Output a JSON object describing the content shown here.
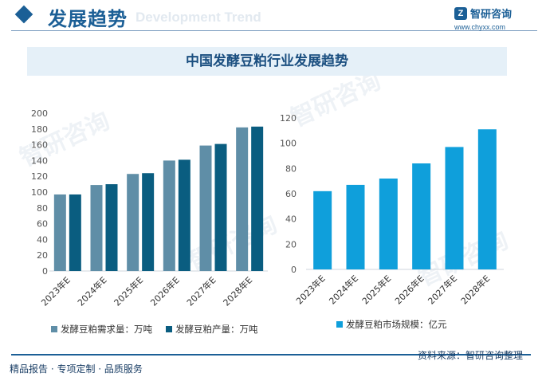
{
  "header": {
    "title": "发展趋势",
    "ghost_text": "Development Trend"
  },
  "logo": {
    "name": "智研咨询",
    "url": "www.chyxx.com"
  },
  "chart_title": "中国发酵豆粕行业发展趋势",
  "watermark": "智研咨询",
  "colors": {
    "demand": "#5f8ea7",
    "production": "#0a5d80",
    "market": "#0f9fdb",
    "accent": "#1b5f96"
  },
  "chart_data": [
    {
      "type": "bar",
      "title": "",
      "categories": [
        "2023年E",
        "2024年E",
        "2025年E",
        "2026年E",
        "2027年E",
        "2028年E"
      ],
      "series": [
        {
          "name": "发酵豆粕需求量：万吨",
          "values": [
            97,
            109,
            123,
            140,
            159,
            182
          ]
        },
        {
          "name": "发酵豆粕产量：万吨",
          "values": [
            97,
            110,
            124,
            141,
            161,
            183
          ]
        }
      ],
      "ylim": [
        0,
        200
      ],
      "yticks": [
        0,
        20,
        40,
        60,
        80,
        100,
        120,
        140,
        160,
        180,
        200
      ],
      "legend": "bottom"
    },
    {
      "type": "bar",
      "title": "",
      "categories": [
        "2023年E",
        "2024年E",
        "2025年E",
        "2026年E",
        "2027年E",
        "2028年E"
      ],
      "series": [
        {
          "name": "发酵豆粕市场规模：亿元",
          "values": [
            62,
            67,
            72,
            84,
            97,
            111
          ]
        }
      ],
      "ylim": [
        0,
        120
      ],
      "yticks": [
        0,
        20,
        40,
        60,
        80,
        100,
        120
      ],
      "legend": "bottom"
    }
  ],
  "footer": {
    "source": "资料来源：智研咨询整理",
    "slogan": "精品报告 · 专项定制 · 品质服务"
  }
}
